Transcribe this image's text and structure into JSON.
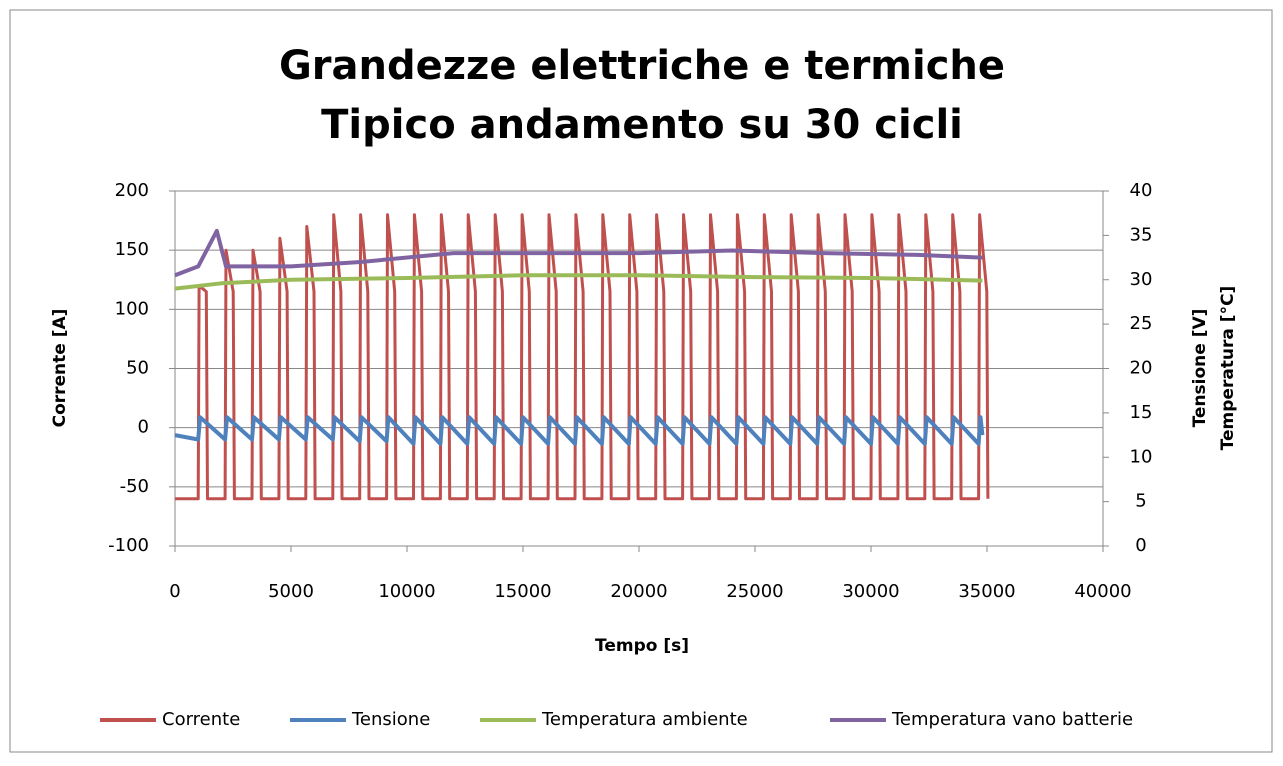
{
  "chart_data": {
    "type": "line",
    "title": [
      "Grandezze elettriche e termiche",
      "Tipico andamento su 30 cicli"
    ],
    "x_label": "Tempo [s]",
    "y_label": "Corrente [A]",
    "y2_label": [
      "Tensione [V]",
      "Temperatura [°C]"
    ],
    "xlim": [
      0,
      40000
    ],
    "xticks": [
      0,
      5000,
      10000,
      15000,
      20000,
      25000,
      30000,
      35000,
      40000
    ],
    "ylim": [
      -100,
      200
    ],
    "yticks": [
      -100,
      -50,
      0,
      50,
      100,
      150,
      200
    ],
    "y2lim": [
      0,
      40
    ],
    "y2ticks": [
      0,
      5,
      10,
      15,
      20,
      25,
      30,
      35,
      40
    ],
    "grid": true,
    "legend": "bottom",
    "series": [
      {
        "name": "Corrente",
        "color": "#c0504d",
        "axis": "y",
        "x": [
          0,
          1000,
          1040,
          1350,
          1400,
          2160,
          2200,
          2510,
          2560,
          3320,
          3360,
          3670,
          3720,
          4480,
          4520,
          4830,
          4880,
          5640,
          5680,
          5990,
          6040,
          6800,
          6840,
          7150,
          7200,
          7960,
          8000,
          8310,
          8360,
          9120,
          9160,
          9470,
          9520,
          10280,
          10320,
          10630,
          10680,
          11440,
          11480,
          11790,
          11840,
          12600,
          12640,
          12950,
          13000,
          13760,
          13800,
          14110,
          14160,
          14920,
          14960,
          15270,
          15320,
          16080,
          16120,
          16430,
          16480,
          17240,
          17280,
          17590,
          17640,
          18400,
          18440,
          18750,
          18800,
          19560,
          19600,
          19910,
          19960,
          20720,
          20760,
          21070,
          21120,
          21880,
          21920,
          22230,
          22280,
          23040,
          23080,
          23390,
          23440,
          24200,
          24240,
          24550,
          24600,
          25360,
          25400,
          25710,
          25760,
          26520,
          26560,
          26870,
          26920,
          27680,
          27720,
          28030,
          28080,
          28840,
          28880,
          29190,
          29240,
          30000,
          30040,
          30350,
          30400,
          31160,
          31200,
          31510,
          31560,
          32320,
          32360,
          32670,
          32720,
          33480,
          33520,
          33830,
          33880,
          34640,
          34680,
          34990,
          35040
        ],
        "values": [
          -60,
          -60,
          120,
          115,
          -60,
          -60,
          150,
          115,
          -60,
          -60,
          150,
          115,
          -60,
          -60,
          160,
          115,
          -60,
          -60,
          170,
          115,
          -60,
          -60,
          180,
          115,
          -60,
          -60,
          180,
          115,
          -60,
          -60,
          180,
          115,
          -60,
          -60,
          180,
          115,
          -60,
          -60,
          180,
          115,
          -60,
          -60,
          180,
          115,
          -60,
          -60,
          180,
          115,
          -60,
          -60,
          180,
          115,
          -60,
          -60,
          180,
          115,
          -60,
          -60,
          180,
          115,
          -60,
          -60,
          180,
          115,
          -60,
          -60,
          180,
          115,
          -60,
          -60,
          180,
          115,
          -60,
          -60,
          180,
          115,
          -60,
          -60,
          180,
          115,
          -60,
          -60,
          180,
          115,
          -60,
          -60,
          180,
          115,
          -60,
          -60,
          180,
          115,
          -60,
          -60,
          180,
          115,
          -60,
          -60,
          180,
          115,
          -60,
          -60,
          180,
          115,
          -60,
          -60,
          180,
          115,
          -60,
          -60,
          180,
          115,
          -60,
          -60,
          180,
          115,
          -60,
          -60,
          180,
          115,
          -60
        ]
      },
      {
        "name": "Tensione",
        "color": "#4f81bd",
        "axis": "y2",
        "x": [
          0,
          1000,
          1080,
          2160,
          2240,
          3320,
          3400,
          4480,
          4560,
          5640,
          5720,
          6800,
          6880,
          7960,
          8040,
          9120,
          9200,
          10280,
          10360,
          11440,
          11520,
          12600,
          12680,
          13760,
          13840,
          14920,
          15000,
          16080,
          16160,
          17240,
          17320,
          18400,
          18480,
          19560,
          19640,
          20720,
          20800,
          21880,
          21960,
          23040,
          23120,
          24200,
          24280,
          25360,
          25440,
          26520,
          26600,
          27680,
          27760,
          28840,
          28920,
          30000,
          30080,
          31160,
          31240,
          32320,
          32400,
          33480,
          33560,
          34640,
          34720,
          34800
        ],
        "values": [
          12.5,
          12,
          14.5,
          12,
          14.5,
          12,
          14.5,
          12,
          14.5,
          12,
          14.5,
          12,
          14.5,
          11.8,
          14.5,
          11.8,
          14.5,
          11.5,
          14.5,
          11.5,
          14.5,
          11.5,
          14.5,
          11.5,
          14.5,
          11.5,
          14.5,
          11.5,
          14.5,
          11.5,
          14.5,
          11.5,
          14.5,
          11.5,
          14.5,
          11.5,
          14.5,
          11.5,
          14.5,
          11.5,
          14.5,
          11.5,
          14.5,
          11.5,
          14.5,
          11.5,
          14.5,
          11.5,
          14.5,
          11.5,
          14.5,
          11.5,
          14.5,
          11.5,
          14.5,
          11.5,
          14.5,
          11.5,
          14.5,
          11.5,
          14.5,
          12.5
        ]
      },
      {
        "name": "Temperatura ambiente",
        "color": "#9bbb59",
        "axis": "y2",
        "x": [
          0,
          2000,
          5000,
          10000,
          15000,
          20000,
          25000,
          30000,
          34800
        ],
        "values": [
          29,
          29.6,
          30,
          30.2,
          30.5,
          30.5,
          30.3,
          30.2,
          29.9
        ]
      },
      {
        "name": "Temperatura vano batterie",
        "color": "#8064a2",
        "axis": "y2",
        "x": [
          0,
          1000,
          1800,
          2200,
          5000,
          8000,
          12000,
          15000,
          20000,
          24000,
          28000,
          32000,
          34800
        ],
        "values": [
          30.5,
          31.5,
          35.5,
          31.5,
          31.5,
          32,
          33,
          33,
          33,
          33.3,
          33,
          32.8,
          32.5
        ]
      }
    ]
  }
}
